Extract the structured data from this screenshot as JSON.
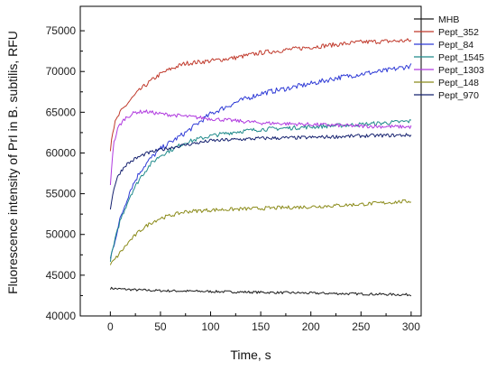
{
  "chart_data": {
    "type": "line",
    "title": "",
    "xlabel": "Time, s",
    "ylabel": "Fluorescence intensity of PrI in B. subtilis, RFU",
    "xlim": [
      -30,
      310
    ],
    "ylim": [
      40000,
      78000
    ],
    "x_ticks": [
      0,
      50,
      100,
      150,
      200,
      250,
      300
    ],
    "y_ticks": [
      40000,
      45000,
      50000,
      55000,
      60000,
      65000,
      70000,
      75000
    ],
    "grid": false,
    "legend_position": "top-right",
    "series": [
      {
        "name": "MHB",
        "color": "#1a1a1a",
        "noise": 150,
        "x": [
          0,
          10,
          25,
          50,
          100,
          150,
          200,
          250,
          300
        ],
        "y": [
          43400,
          43300,
          43200,
          43100,
          43000,
          42900,
          42800,
          42700,
          42600
        ]
      },
      {
        "name": "Pept_352",
        "color": "#c0392b",
        "noise": 280,
        "x": [
          0,
          2,
          5,
          10,
          20,
          30,
          40,
          50,
          60,
          75,
          100,
          125,
          150,
          200,
          250,
          300
        ],
        "y": [
          60500,
          62500,
          63800,
          65000,
          66500,
          67800,
          68800,
          69700,
          70300,
          71000,
          71300,
          71700,
          72300,
          73000,
          73600,
          73800
        ]
      },
      {
        "name": "Pept_84",
        "color": "#2e3ad6",
        "noise": 320,
        "x": [
          0,
          5,
          10,
          20,
          30,
          40,
          50,
          75,
          100,
          125,
          150,
          175,
          200,
          225,
          250,
          275,
          300
        ],
        "y": [
          47000,
          49500,
          52000,
          55500,
          57800,
          59300,
          60500,
          62500,
          64800,
          66200,
          67300,
          67900,
          68500,
          69200,
          69700,
          70100,
          70700
        ]
      },
      {
        "name": "Pept_1545",
        "color": "#1f8a8a",
        "noise": 260,
        "x": [
          0,
          5,
          10,
          20,
          30,
          40,
          50,
          75,
          100,
          125,
          150,
          200,
          250,
          300
        ],
        "y": [
          46900,
          49500,
          51800,
          54800,
          57000,
          58600,
          59700,
          61300,
          62100,
          62600,
          62900,
          63200,
          63500,
          63900
        ]
      },
      {
        "name": "Pept_1303",
        "color": "#b03adf",
        "noise": 230,
        "x": [
          0,
          3,
          8,
          15,
          25,
          35,
          50,
          75,
          100,
          150,
          200,
          250,
          300
        ],
        "y": [
          56200,
          61000,
          63200,
          64300,
          65000,
          65100,
          64800,
          64500,
          64200,
          63700,
          63500,
          63300,
          63200
        ]
      },
      {
        "name": "Pept_148",
        "color": "#8b8b1a",
        "noise": 230,
        "x": [
          0,
          5,
          10,
          20,
          30,
          40,
          50,
          75,
          100,
          150,
          200,
          250,
          300
        ],
        "y": [
          46300,
          47000,
          47800,
          49300,
          50500,
          51400,
          52000,
          52800,
          53000,
          53200,
          53400,
          53700,
          54100
        ]
      },
      {
        "name": "Pept_970",
        "color": "#14206e",
        "noise": 220,
        "x": [
          0,
          3,
          8,
          15,
          25,
          35,
          50,
          75,
          100,
          150,
          200,
          250,
          300
        ],
        "y": [
          53000,
          55500,
          57300,
          58500,
          59300,
          59900,
          60400,
          61000,
          61500,
          61800,
          61900,
          62100,
          62200
        ]
      }
    ]
  }
}
